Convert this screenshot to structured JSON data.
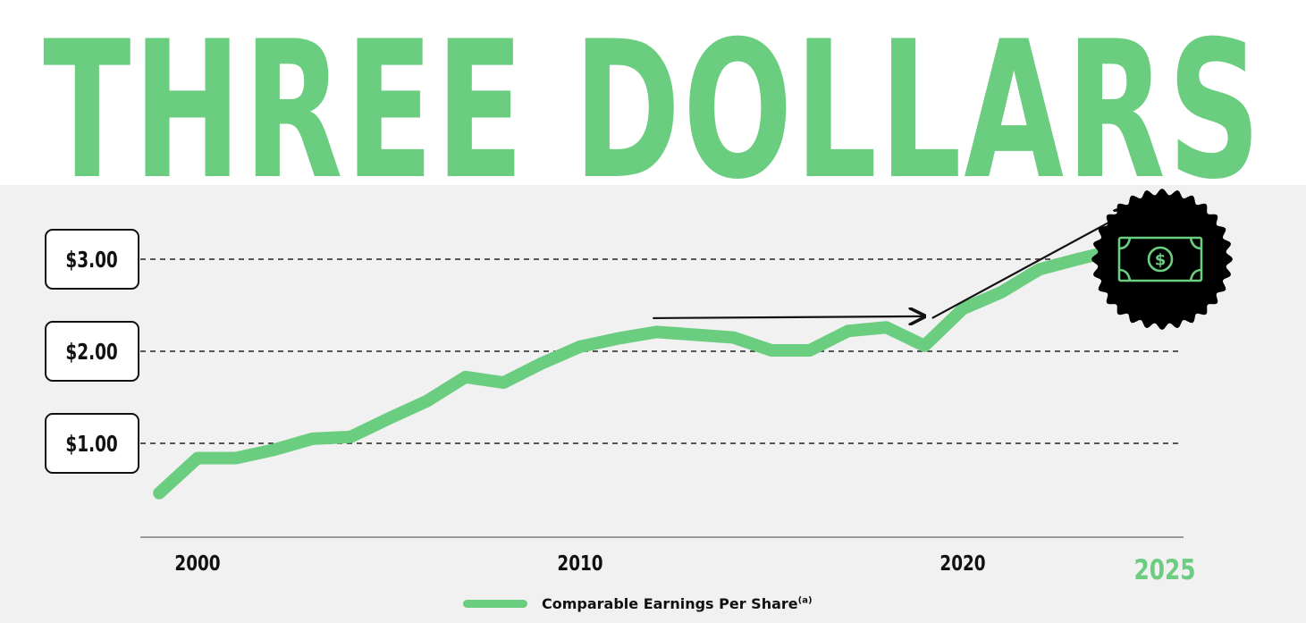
{
  "headline": "THREE DOLLARS",
  "colors": {
    "accent": "#6bcd80",
    "dark": "#111111",
    "panel": "#f1f1f1"
  },
  "chart_data": {
    "type": "line",
    "x": [
      1999,
      2000,
      2001,
      2002,
      2003,
      2004,
      2005,
      2006,
      2007,
      2008,
      2009,
      2010,
      2011,
      2012,
      2013,
      2014,
      2015,
      2016,
      2017,
      2018,
      2019,
      2020,
      2021,
      2022,
      2023,
      2024
    ],
    "series": [
      {
        "name": "Comparable Earnings Per Share",
        "values": [
          0.46,
          0.84,
          0.84,
          0.93,
          1.05,
          1.07,
          1.27,
          1.46,
          1.72,
          1.66,
          1.87,
          2.05,
          2.14,
          2.21,
          2.18,
          2.15,
          2.01,
          2.01,
          2.22,
          2.26,
          2.06,
          2.46,
          2.64,
          2.89,
          3.0,
          3.1
        ]
      }
    ],
    "yticks": [
      "$1.00",
      "$2.00",
      "$3.00"
    ],
    "ytick_values": [
      1,
      2,
      3
    ],
    "xticks": [
      "2000",
      "2010",
      "2020"
    ],
    "xtick_values": [
      2000,
      2010,
      2020
    ],
    "target_label": "2025",
    "target_year": 2025,
    "legend": {
      "label": "Comparable Earnings Per Share",
      "superscript": "(a)",
      "position": "bottom-center"
    },
    "grid": true,
    "badge_icon": "dollar-bill-icon"
  }
}
